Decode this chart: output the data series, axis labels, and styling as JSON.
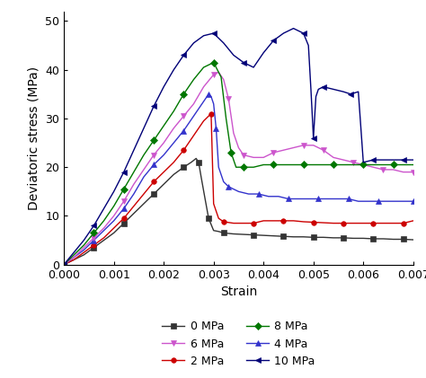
{
  "series": [
    {
      "label": "0 MPa",
      "color": "#333333",
      "marker": "s",
      "strain": [
        0.0,
        0.0002,
        0.0004,
        0.0006,
        0.0008,
        0.001,
        0.0012,
        0.0014,
        0.0016,
        0.0018,
        0.002,
        0.0022,
        0.0024,
        0.00255,
        0.00265,
        0.0027,
        0.00275,
        0.00282,
        0.0029,
        0.003,
        0.0031,
        0.0032,
        0.0034,
        0.0036,
        0.0038,
        0.004,
        0.0042,
        0.0044,
        0.0046,
        0.0048,
        0.005,
        0.0052,
        0.0054,
        0.0056,
        0.0058,
        0.006,
        0.0062,
        0.0064,
        0.0066,
        0.0068,
        0.007
      ],
      "stress": [
        0,
        1.0,
        2.0,
        3.5,
        5.0,
        6.5,
        8.5,
        10.5,
        12.5,
        14.5,
        16.5,
        18.5,
        20.0,
        21.0,
        21.8,
        21.0,
        18.0,
        14.0,
        9.5,
        7.0,
        6.8,
        6.5,
        6.3,
        6.2,
        6.1,
        6.0,
        5.9,
        5.8,
        5.7,
        5.7,
        5.6,
        5.6,
        5.5,
        5.5,
        5.4,
        5.4,
        5.3,
        5.3,
        5.2,
        5.2,
        5.1
      ]
    },
    {
      "label": "2 MPa",
      "color": "#cc0000",
      "marker": "o",
      "strain": [
        0.0,
        0.0002,
        0.0004,
        0.0006,
        0.0008,
        0.001,
        0.0012,
        0.0014,
        0.0016,
        0.0018,
        0.002,
        0.0022,
        0.0024,
        0.0026,
        0.0028,
        0.00295,
        0.003,
        0.0031,
        0.0032,
        0.0034,
        0.0036,
        0.0038,
        0.004,
        0.0042,
        0.0044,
        0.0046,
        0.0048,
        0.005,
        0.0052,
        0.0054,
        0.0056,
        0.0058,
        0.006,
        0.0062,
        0.0064,
        0.0066,
        0.0068,
        0.007
      ],
      "stress": [
        0,
        1.0,
        2.5,
        4.0,
        5.5,
        7.5,
        9.5,
        12.0,
        14.5,
        17.0,
        19.0,
        21.0,
        23.5,
        26.5,
        29.5,
        31.0,
        12.5,
        9.5,
        8.8,
        8.5,
        8.5,
        8.5,
        9.0,
        9.0,
        9.0,
        9.0,
        8.8,
        8.7,
        8.6,
        8.5,
        8.5,
        8.5,
        8.5,
        8.5,
        8.5,
        8.5,
        8.5,
        9.0
      ]
    },
    {
      "label": "4 MPa",
      "color": "#3333cc",
      "marker": "^",
      "strain": [
        0.0,
        0.0002,
        0.0004,
        0.0006,
        0.0008,
        0.001,
        0.0012,
        0.0014,
        0.0016,
        0.0018,
        0.002,
        0.0022,
        0.0024,
        0.0026,
        0.0028,
        0.0029,
        0.00295,
        0.003,
        0.00305,
        0.0031,
        0.0032,
        0.0033,
        0.0035,
        0.0037,
        0.0039,
        0.0041,
        0.0043,
        0.0045,
        0.0047,
        0.0049,
        0.0051,
        0.0053,
        0.0055,
        0.0057,
        0.0059,
        0.0061,
        0.0063,
        0.0065,
        0.0067,
        0.007
      ],
      "stress": [
        0,
        1.5,
        3.0,
        5.0,
        7.0,
        9.0,
        11.5,
        14.5,
        18.0,
        20.5,
        22.5,
        25.0,
        27.5,
        30.5,
        33.5,
        35.0,
        34.5,
        33.0,
        28.0,
        20.0,
        17.0,
        16.0,
        15.0,
        14.5,
        14.5,
        14.0,
        14.0,
        13.5,
        13.5,
        13.5,
        13.5,
        13.5,
        13.5,
        13.5,
        13.0,
        13.0,
        13.0,
        13.0,
        13.0,
        13.0
      ]
    },
    {
      "label": "6 MPa",
      "color": "#cc55cc",
      "marker": "v",
      "strain": [
        0.0,
        0.0002,
        0.0004,
        0.0006,
        0.0008,
        0.001,
        0.0012,
        0.0014,
        0.0016,
        0.0018,
        0.002,
        0.0022,
        0.0024,
        0.0026,
        0.0028,
        0.003,
        0.0031,
        0.0032,
        0.0033,
        0.0034,
        0.0035,
        0.0036,
        0.0038,
        0.004,
        0.0042,
        0.0044,
        0.0046,
        0.0048,
        0.005,
        0.0051,
        0.0052,
        0.0054,
        0.0056,
        0.0058,
        0.006,
        0.0062,
        0.0064,
        0.0066,
        0.0068,
        0.007
      ],
      "stress": [
        0,
        1.5,
        3.5,
        5.5,
        7.5,
        10.0,
        13.0,
        16.5,
        19.5,
        22.5,
        25.0,
        28.0,
        30.5,
        33.0,
        36.5,
        39.0,
        39.5,
        38.0,
        34.0,
        27.0,
        24.0,
        22.5,
        22.0,
        22.0,
        23.0,
        23.5,
        24.0,
        24.5,
        24.5,
        24.0,
        23.5,
        22.0,
        21.5,
        21.0,
        20.5,
        20.0,
        19.5,
        19.5,
        19.0,
        19.0
      ]
    },
    {
      "label": "8 MPa",
      "color": "#007700",
      "marker": "D",
      "strain": [
        0.0,
        0.0002,
        0.0004,
        0.0006,
        0.0008,
        0.001,
        0.0012,
        0.0014,
        0.0016,
        0.0018,
        0.002,
        0.0022,
        0.0024,
        0.0026,
        0.0028,
        0.003,
        0.00315,
        0.00325,
        0.00335,
        0.00345,
        0.00355,
        0.0036,
        0.0038,
        0.004,
        0.0042,
        0.0044,
        0.0046,
        0.0048,
        0.005,
        0.0052,
        0.0054,
        0.0056,
        0.0058,
        0.006,
        0.0062,
        0.0064,
        0.0066,
        0.0068,
        0.007
      ],
      "stress": [
        0,
        2.0,
        4.0,
        6.5,
        9.0,
        12.0,
        15.5,
        19.0,
        22.5,
        25.5,
        28.5,
        31.5,
        35.0,
        38.0,
        40.5,
        41.5,
        38.5,
        30.0,
        23.0,
        20.0,
        20.0,
        20.0,
        20.0,
        20.5,
        20.5,
        20.5,
        20.5,
        20.5,
        20.5,
        20.5,
        20.5,
        20.5,
        20.5,
        20.5,
        20.5,
        20.5,
        20.5,
        20.5,
        20.5
      ]
    },
    {
      "label": "10 MPa",
      "color": "#000077",
      "marker": "<",
      "strain": [
        0.0,
        0.0002,
        0.0004,
        0.0006,
        0.0008,
        0.001,
        0.0012,
        0.0014,
        0.0016,
        0.0018,
        0.002,
        0.0022,
        0.0024,
        0.0026,
        0.0028,
        0.003,
        0.0032,
        0.0034,
        0.0036,
        0.0038,
        0.004,
        0.0042,
        0.0044,
        0.0046,
        0.0048,
        0.0049,
        0.00495,
        0.005,
        0.00505,
        0.0051,
        0.0052,
        0.0054,
        0.0056,
        0.00575,
        0.0059,
        0.006,
        0.0062,
        0.0064,
        0.0066,
        0.0068,
        0.007
      ],
      "stress": [
        0,
        2.5,
        5.0,
        8.0,
        11.5,
        15.0,
        19.0,
        23.5,
        28.0,
        32.5,
        36.5,
        40.0,
        43.0,
        45.5,
        47.0,
        47.5,
        45.5,
        43.0,
        41.5,
        40.5,
        43.5,
        46.0,
        47.5,
        48.5,
        47.5,
        45.0,
        36.0,
        26.0,
        34.5,
        36.0,
        36.5,
        36.0,
        35.5,
        35.0,
        35.5,
        21.0,
        21.5,
        21.5,
        21.5,
        21.5,
        21.5
      ]
    }
  ],
  "xlabel": "Strain",
  "ylabel": "Deviatoric stress (MPa)",
  "xlim": [
    0.0,
    0.007
  ],
  "ylim": [
    0,
    52
  ],
  "xticks": [
    0.0,
    0.001,
    0.002,
    0.003,
    0.004,
    0.005,
    0.006,
    0.007
  ],
  "yticks": [
    0,
    10,
    20,
    30,
    40,
    50
  ],
  "background_color": "#ffffff",
  "markersize": 4,
  "linewidth": 1.0,
  "markevery": 3
}
